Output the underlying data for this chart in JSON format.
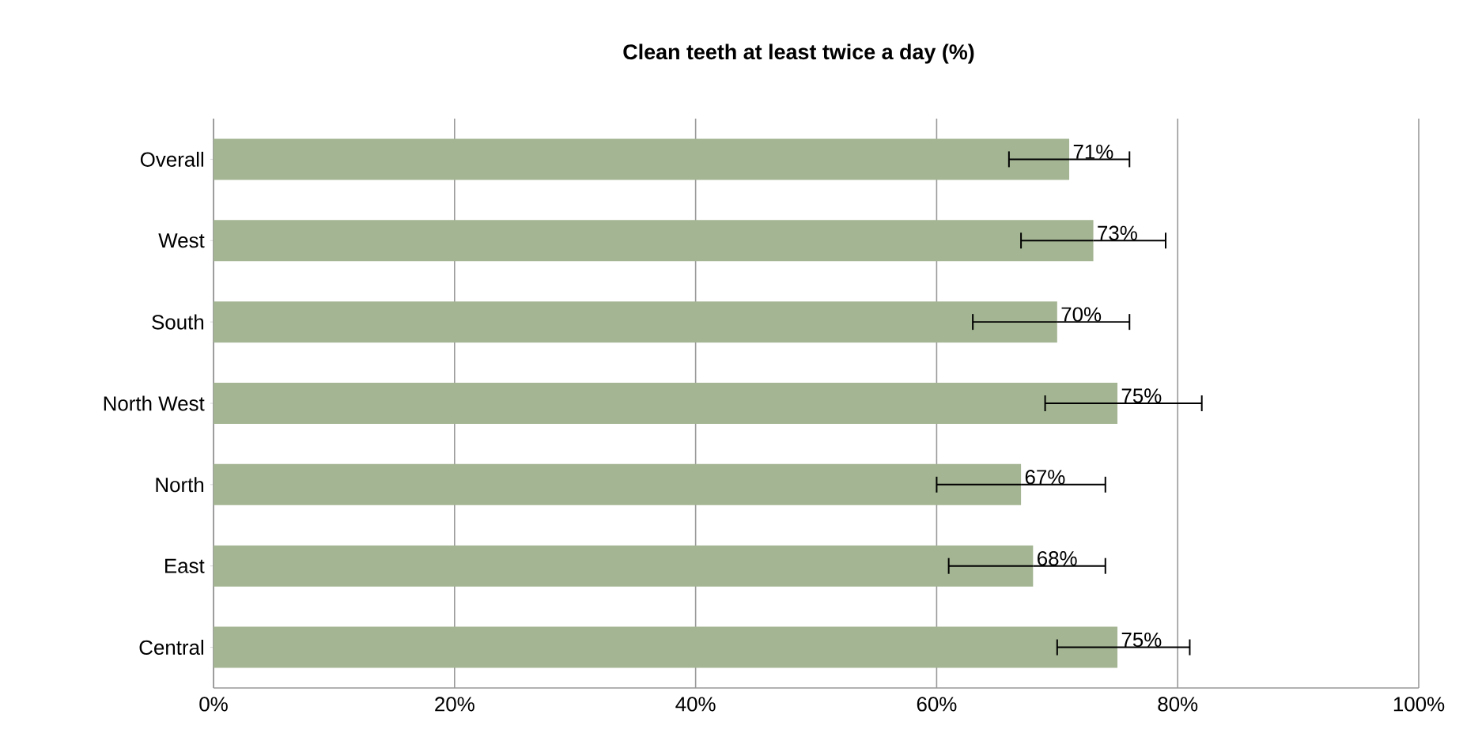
{
  "chart_data": {
    "type": "bar",
    "orientation": "horizontal",
    "title": "Clean teeth at least twice a day (%)",
    "categories": [
      "Overall",
      "West",
      "South",
      "North West",
      "North",
      "East",
      "Central"
    ],
    "values": [
      71,
      73,
      70,
      75,
      67,
      68,
      75
    ],
    "value_labels": [
      "71%",
      "73%",
      "70%",
      "75%",
      "67%",
      "68%",
      "75%"
    ],
    "errors": [
      [
        66,
        76
      ],
      [
        67,
        79
      ],
      [
        63,
        76
      ],
      [
        69,
        82
      ],
      [
        60,
        74
      ],
      [
        61,
        74
      ],
      [
        70,
        81
      ]
    ],
    "color": "#a3b592",
    "xlim": [
      0,
      100
    ],
    "xticks": [
      {
        "value": 0,
        "label": "0%"
      },
      {
        "value": 20,
        "label": "20%"
      },
      {
        "value": 40,
        "label": "40%"
      },
      {
        "value": 60,
        "label": "60%"
      },
      {
        "value": 80,
        "label": "80%"
      },
      {
        "value": 100,
        "label": "100%"
      }
    ],
    "grid": "x"
  }
}
